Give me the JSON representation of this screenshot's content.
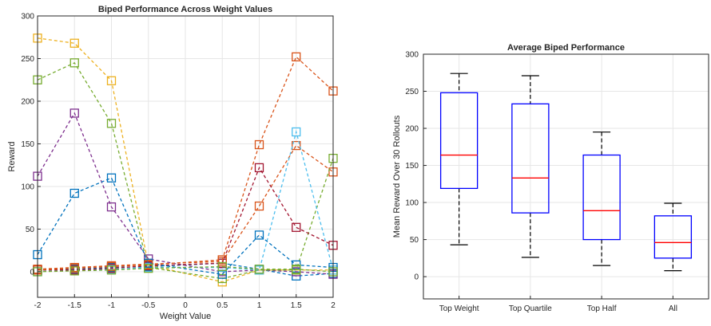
{
  "chart_data": [
    {
      "type": "line",
      "title": "Biped Performance Across Weight Values",
      "xlabel": "Weight Value",
      "ylabel": "Reward",
      "xlim": [
        -2,
        2
      ],
      "ylim": [
        -30,
        300
      ],
      "xticks": [
        -2,
        -1.5,
        -1,
        -0.5,
        0,
        0.5,
        1,
        1.5,
        2
      ],
      "xtick_labels": [
        "-2",
        "-1.5",
        "-1",
        "-0.5",
        "0",
        "0.5",
        "1",
        "1.5",
        "2"
      ],
      "yticks": [
        0,
        50,
        100,
        150,
        200,
        250,
        300
      ],
      "ytick_labels": [
        "0",
        "50",
        "100",
        "150",
        "200",
        "250",
        "300"
      ],
      "grid": true,
      "line_style": "dashed",
      "marker": "square",
      "x": [
        -2,
        -1.5,
        -1,
        -0.5,
        0.5,
        1,
        1.5,
        2
      ],
      "series": [
        {
          "color": "#0072BD",
          "values": [
            2,
            3,
            5,
            6,
            10,
            3,
            -5,
            -2
          ]
        },
        {
          "color": "#D95319",
          "values": [
            3,
            5,
            7,
            9,
            12,
            77,
            148,
            117
          ]
        },
        {
          "color": "#EDB120",
          "values": [
            274,
            268,
            224,
            8,
            -12,
            2,
            2,
            2
          ]
        },
        {
          "color": "#7E2F8E",
          "values": [
            112,
            186,
            76,
            15,
            0,
            2,
            0,
            -3
          ]
        },
        {
          "color": "#77AC30",
          "values": [
            225,
            245,
            174,
            5,
            -8,
            2,
            2,
            133
          ]
        },
        {
          "color": "#4DBEEE",
          "values": [
            0,
            2,
            3,
            5,
            5,
            2,
            164,
            2
          ]
        },
        {
          "color": "#A2142F",
          "values": [
            2,
            2,
            4,
            7,
            10,
            122,
            52,
            31
          ]
        },
        {
          "color": "#0072BD",
          "values": [
            20,
            92,
            110,
            10,
            -3,
            43,
            8,
            5
          ]
        },
        {
          "color": "#D95319",
          "values": [
            2,
            4,
            6,
            8,
            14,
            149,
            252,
            212
          ]
        },
        {
          "color": "#77AC30",
          "values": [
            0,
            1,
            2,
            4,
            6,
            3,
            3,
            0
          ]
        }
      ]
    },
    {
      "type": "boxplot",
      "title": "Average Biped Performance",
      "xlabel": "",
      "ylabel": "Mean Reward Over 30 Rollouts",
      "ylim": [
        -30,
        300
      ],
      "yticks": [
        0,
        50,
        100,
        150,
        200,
        250,
        300
      ],
      "ytick_labels": [
        "0",
        "50",
        "100",
        "150",
        "200",
        "250",
        "300"
      ],
      "grid": true,
      "box_color": "#0000FF",
      "median_color": "#FF0000",
      "categories": [
        "Top Weight",
        "Top Quartile",
        "Top Half",
        "All"
      ],
      "boxes": [
        {
          "min": 43,
          "q1": 119,
          "median": 164,
          "q3": 248,
          "max": 274
        },
        {
          "min": 26,
          "q1": 86,
          "median": 133,
          "q3": 233,
          "max": 271
        },
        {
          "min": 15,
          "q1": 50,
          "median": 89,
          "q3": 164,
          "max": 195
        },
        {
          "min": 8,
          "q1": 25,
          "median": 46,
          "q3": 82,
          "max": 99
        }
      ]
    }
  ]
}
